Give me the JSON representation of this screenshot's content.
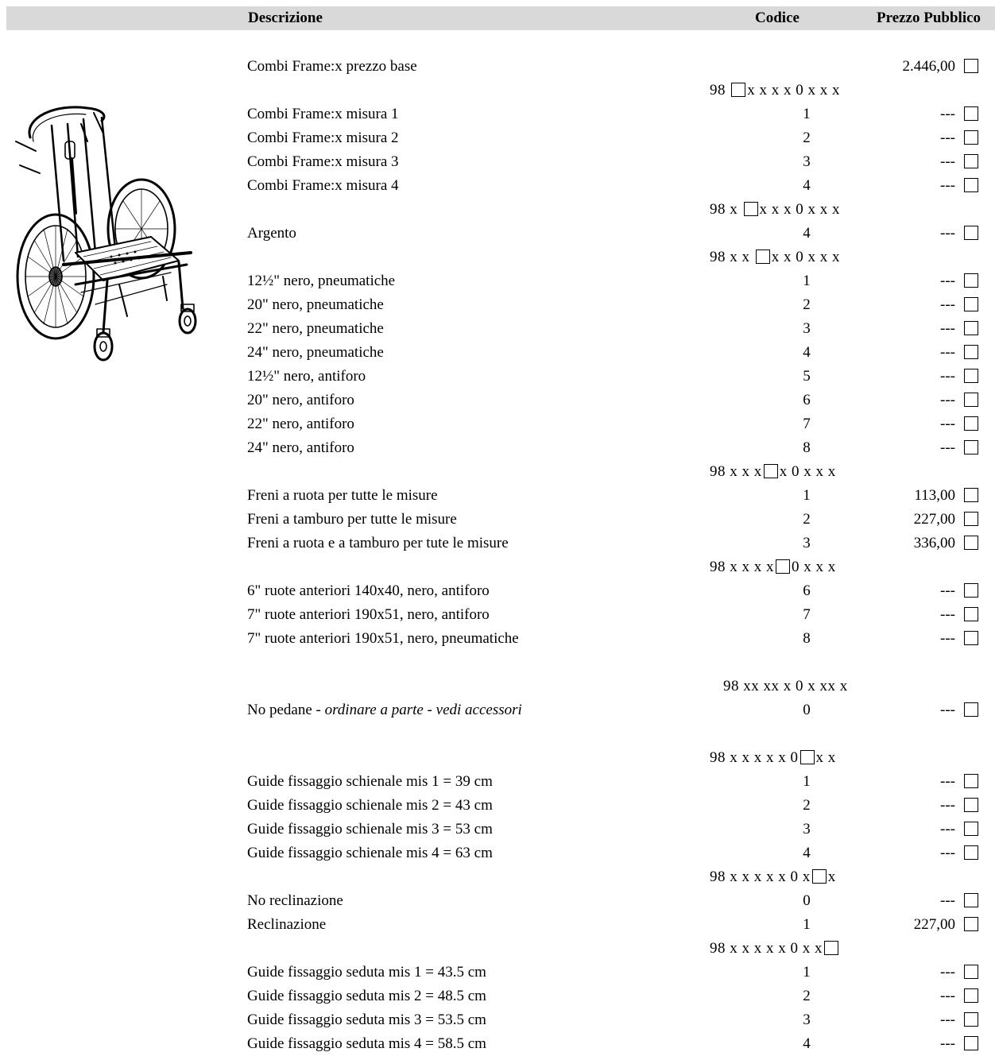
{
  "header": {
    "description": "Descrizione",
    "code": "Codice",
    "price": "Prezzo Pubblico"
  },
  "rows": [
    {
      "type": "item",
      "description": "Combi Frame:x prezzo base",
      "code": "",
      "price": "2.446,00"
    },
    {
      "type": "codeline",
      "before": "98 ",
      "after": "x x x x 0 x x x"
    },
    {
      "type": "item",
      "description": "Combi Frame:x misura 1",
      "code": "1",
      "price": "---"
    },
    {
      "type": "item",
      "description": "Combi Frame:x misura 2",
      "code": "2",
      "price": "---"
    },
    {
      "type": "item",
      "description": "Combi Frame:x misura 3",
      "code": "3",
      "price": "---"
    },
    {
      "type": "item",
      "description": "Combi Frame:x misura 4",
      "code": "4",
      "price": "---"
    },
    {
      "type": "codeline",
      "before": "98 x ",
      "after": "x x x 0 x x x"
    },
    {
      "type": "item",
      "description": "Argento",
      "code": "4",
      "price": "---"
    },
    {
      "type": "codeline",
      "before": "98 x x ",
      "after": "x x 0 x x x"
    },
    {
      "type": "item",
      "description": "12½\" nero, pneumatiche",
      "code": "1",
      "price": "---"
    },
    {
      "type": "item",
      "description": "20\" nero, pneumatiche",
      "code": "2",
      "price": "---"
    },
    {
      "type": "item",
      "description": "22\" nero, pneumatiche",
      "code": "3",
      "price": "---"
    },
    {
      "type": "item",
      "description": "24\" nero, pneumatiche",
      "code": "4",
      "price": "---"
    },
    {
      "type": "item",
      "description": "12½\" nero, antiforo",
      "code": "5",
      "price": "---"
    },
    {
      "type": "item",
      "description": "20\" nero, antiforo",
      "code": "6",
      "price": "---"
    },
    {
      "type": "item",
      "description": "22\" nero, antiforo",
      "code": "7",
      "price": "---"
    },
    {
      "type": "item",
      "description": "24\" nero, antiforo",
      "code": "8",
      "price": "---"
    },
    {
      "type": "codeline",
      "before": "98 x x x",
      "after": "x 0 x x x"
    },
    {
      "type": "item",
      "description": "Freni a ruota per tutte le misure",
      "code": "1",
      "price": "113,00"
    },
    {
      "type": "item",
      "description": "Freni a tamburo per tutte le misure",
      "code": "2",
      "price": "227,00"
    },
    {
      "type": "item",
      "description": "Freni a ruota e a tamburo per tute le misure",
      "code": "3",
      "price": "336,00"
    },
    {
      "type": "codeline",
      "before": "98 x x x x",
      "after": "0 x x x"
    },
    {
      "type": "item",
      "description": "6\" ruote anteriori 140x40, nero, antiforo",
      "code": "6",
      "price": "---"
    },
    {
      "type": "item",
      "description": "7\" ruote anteriori 190x51, nero, antiforo",
      "code": "7",
      "price": "---"
    },
    {
      "type": "item",
      "description": "7\" ruote anteriori 190x51, nero, pneumatiche",
      "code": "8",
      "price": "---"
    },
    {
      "type": "blank"
    },
    {
      "type": "codeline_plain",
      "text": "98 xx xx x 0 x xx x"
    },
    {
      "type": "item_italic",
      "description": "No pedane - ",
      "description_italic": "ordinare a parte  - vedi accessori",
      "code": "0",
      "price": "---"
    },
    {
      "type": "blank"
    },
    {
      "type": "codeline",
      "before": "98 x x x x x 0",
      "after": "x x"
    },
    {
      "type": "item",
      "description": "Guide fissaggio schienale mis 1 = 39 cm",
      "code": "1",
      "price": "---"
    },
    {
      "type": "item",
      "description": "Guide fissaggio schienale mis 2 = 43 cm",
      "code": "2",
      "price": "---"
    },
    {
      "type": "item",
      "description": "Guide fissaggio schienale mis 3 = 53 cm",
      "code": "3",
      "price": "---"
    },
    {
      "type": "item",
      "description": "Guide fissaggio schienale mis 4 = 63 cm",
      "code": "4",
      "price": "---"
    },
    {
      "type": "codeline",
      "before": "98 x x x x x 0 x",
      "after": "x"
    },
    {
      "type": "item",
      "description": "No reclinazione",
      "code": "0",
      "price": "---"
    },
    {
      "type": "item",
      "description": "Reclinazione",
      "code": "1",
      "price": "227,00"
    },
    {
      "type": "codeline",
      "before": "98 x x x x x 0 x x",
      "after": ""
    },
    {
      "type": "item",
      "description": "Guide fissaggio seduta mis 1 = 43.5 cm",
      "code": "1",
      "price": "---"
    },
    {
      "type": "item",
      "description": "Guide fissaggio seduta mis 2 = 48.5 cm",
      "code": "2",
      "price": "---"
    },
    {
      "type": "item",
      "description": "Guide fissaggio seduta mis 3 = 53.5 cm",
      "code": "3",
      "price": "---"
    },
    {
      "type": "item",
      "description": "Guide fissaggio seduta mis 4 = 58.5 cm",
      "code": "4",
      "price": "---"
    }
  ]
}
